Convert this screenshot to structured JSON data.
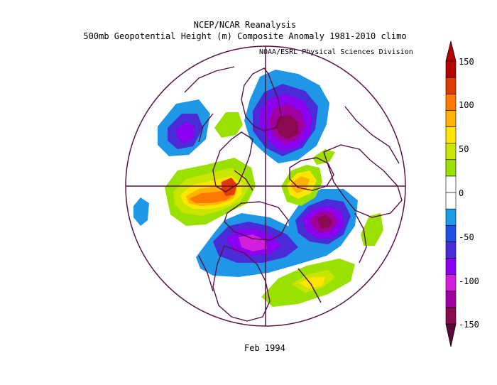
{
  "title_line1": "NCEP/NCAR Reanalysis",
  "title_line2": "500mb Geopotential Height (m) Composite Anomaly 1981-2010 climo",
  "credit": "NOAA/ESRL Physical Sciences Division",
  "bottom_label": "Feb 1994",
  "colorbar": {
    "labels": [
      "150",
      "100",
      "50",
      "0",
      "-50",
      "-100",
      "-150"
    ],
    "colors": [
      "#8b0a4f",
      "#a0009f",
      "#d31edc",
      "#8b00f0",
      "#4a2bd8",
      "#1f50e6",
      "#1e9be6",
      "#ffffff",
      "#ffffff",
      "#9ae000",
      "#c8e600",
      "#ffe600",
      "#ffb300",
      "#ff7800",
      "#e03a00",
      "#b40000"
    ]
  },
  "map": {
    "type": "polar-stereographic-anomaly-map",
    "projection": "north-polar-stereographic",
    "palette": {
      "neg150": "#8b0a4f",
      "neg125": "#a0009f",
      "neg100": "#d31edc",
      "neg75": "#8b00f0",
      "neg50": "#4a2bd8",
      "neg25": "#1f96e6",
      "pos25": "#9ae000",
      "pos50": "#c8e600",
      "pos75": "#ffe600",
      "pos100": "#ffb300",
      "pos125": "#ff7800",
      "pos150": "#e03a00"
    }
  }
}
